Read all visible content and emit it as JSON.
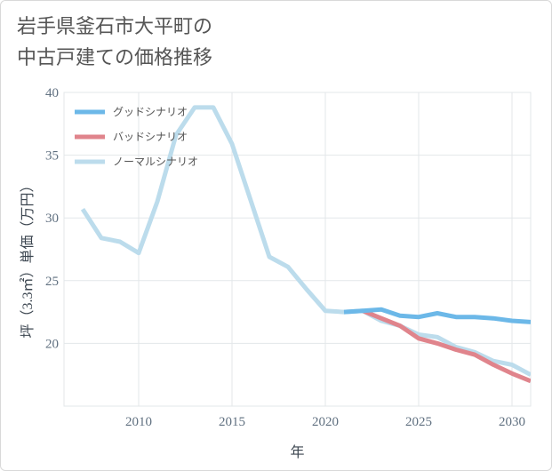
{
  "title_line1": "岩手県釜石市大平町の",
  "title_line2": "中古戸建ての価格推移",
  "chart_data": {
    "type": "line",
    "xlabel": "年",
    "ylabel": "坪（3.3㎡）単価（万円）",
    "xlim": [
      2006,
      2031
    ],
    "ylim": [
      15,
      40
    ],
    "x_ticks": [
      2010,
      2015,
      2020,
      2025,
      2030
    ],
    "y_ticks": [
      20,
      25,
      30,
      35,
      40
    ],
    "grid": true,
    "legend_position": "top-left",
    "series": [
      {
        "name": "ノーマルシナリオ",
        "color": "#bcdcec",
        "x": [
          2007,
          2008,
          2009,
          2010,
          2011,
          2012,
          2013,
          2014,
          2015,
          2016,
          2017,
          2018,
          2019,
          2020,
          2021,
          2022,
          2023,
          2024,
          2025,
          2026,
          2027,
          2028,
          2029,
          2030,
          2031
        ],
        "values": [
          30.7,
          28.4,
          28.1,
          27.2,
          31.3,
          36.6,
          38.8,
          38.8,
          35.9,
          31.4,
          26.9,
          26.1,
          24.3,
          22.6,
          22.5,
          22.6,
          21.8,
          21.4,
          20.7,
          20.5,
          19.7,
          19.3,
          18.6,
          18.3,
          17.5
        ]
      },
      {
        "name": "バッドシナリオ",
        "color": "#e0848c",
        "x": [
          2022,
          2023,
          2024,
          2025,
          2026,
          2027,
          2028,
          2029,
          2030,
          2031
        ],
        "values": [
          22.6,
          22.0,
          21.4,
          20.4,
          20.0,
          19.5,
          19.1,
          18.3,
          17.6,
          17.0
        ]
      },
      {
        "name": "グッドシナリオ",
        "color": "#6cb8e8",
        "x": [
          2021,
          2022,
          2023,
          2024,
          2025,
          2026,
          2027,
          2028,
          2029,
          2030,
          2031
        ],
        "values": [
          22.5,
          22.6,
          22.7,
          22.2,
          22.1,
          22.4,
          22.1,
          22.1,
          22.0,
          21.8,
          21.7
        ]
      }
    ],
    "legend_order": [
      "グッドシナリオ",
      "バッドシナリオ",
      "ノーマルシナリオ"
    ]
  }
}
